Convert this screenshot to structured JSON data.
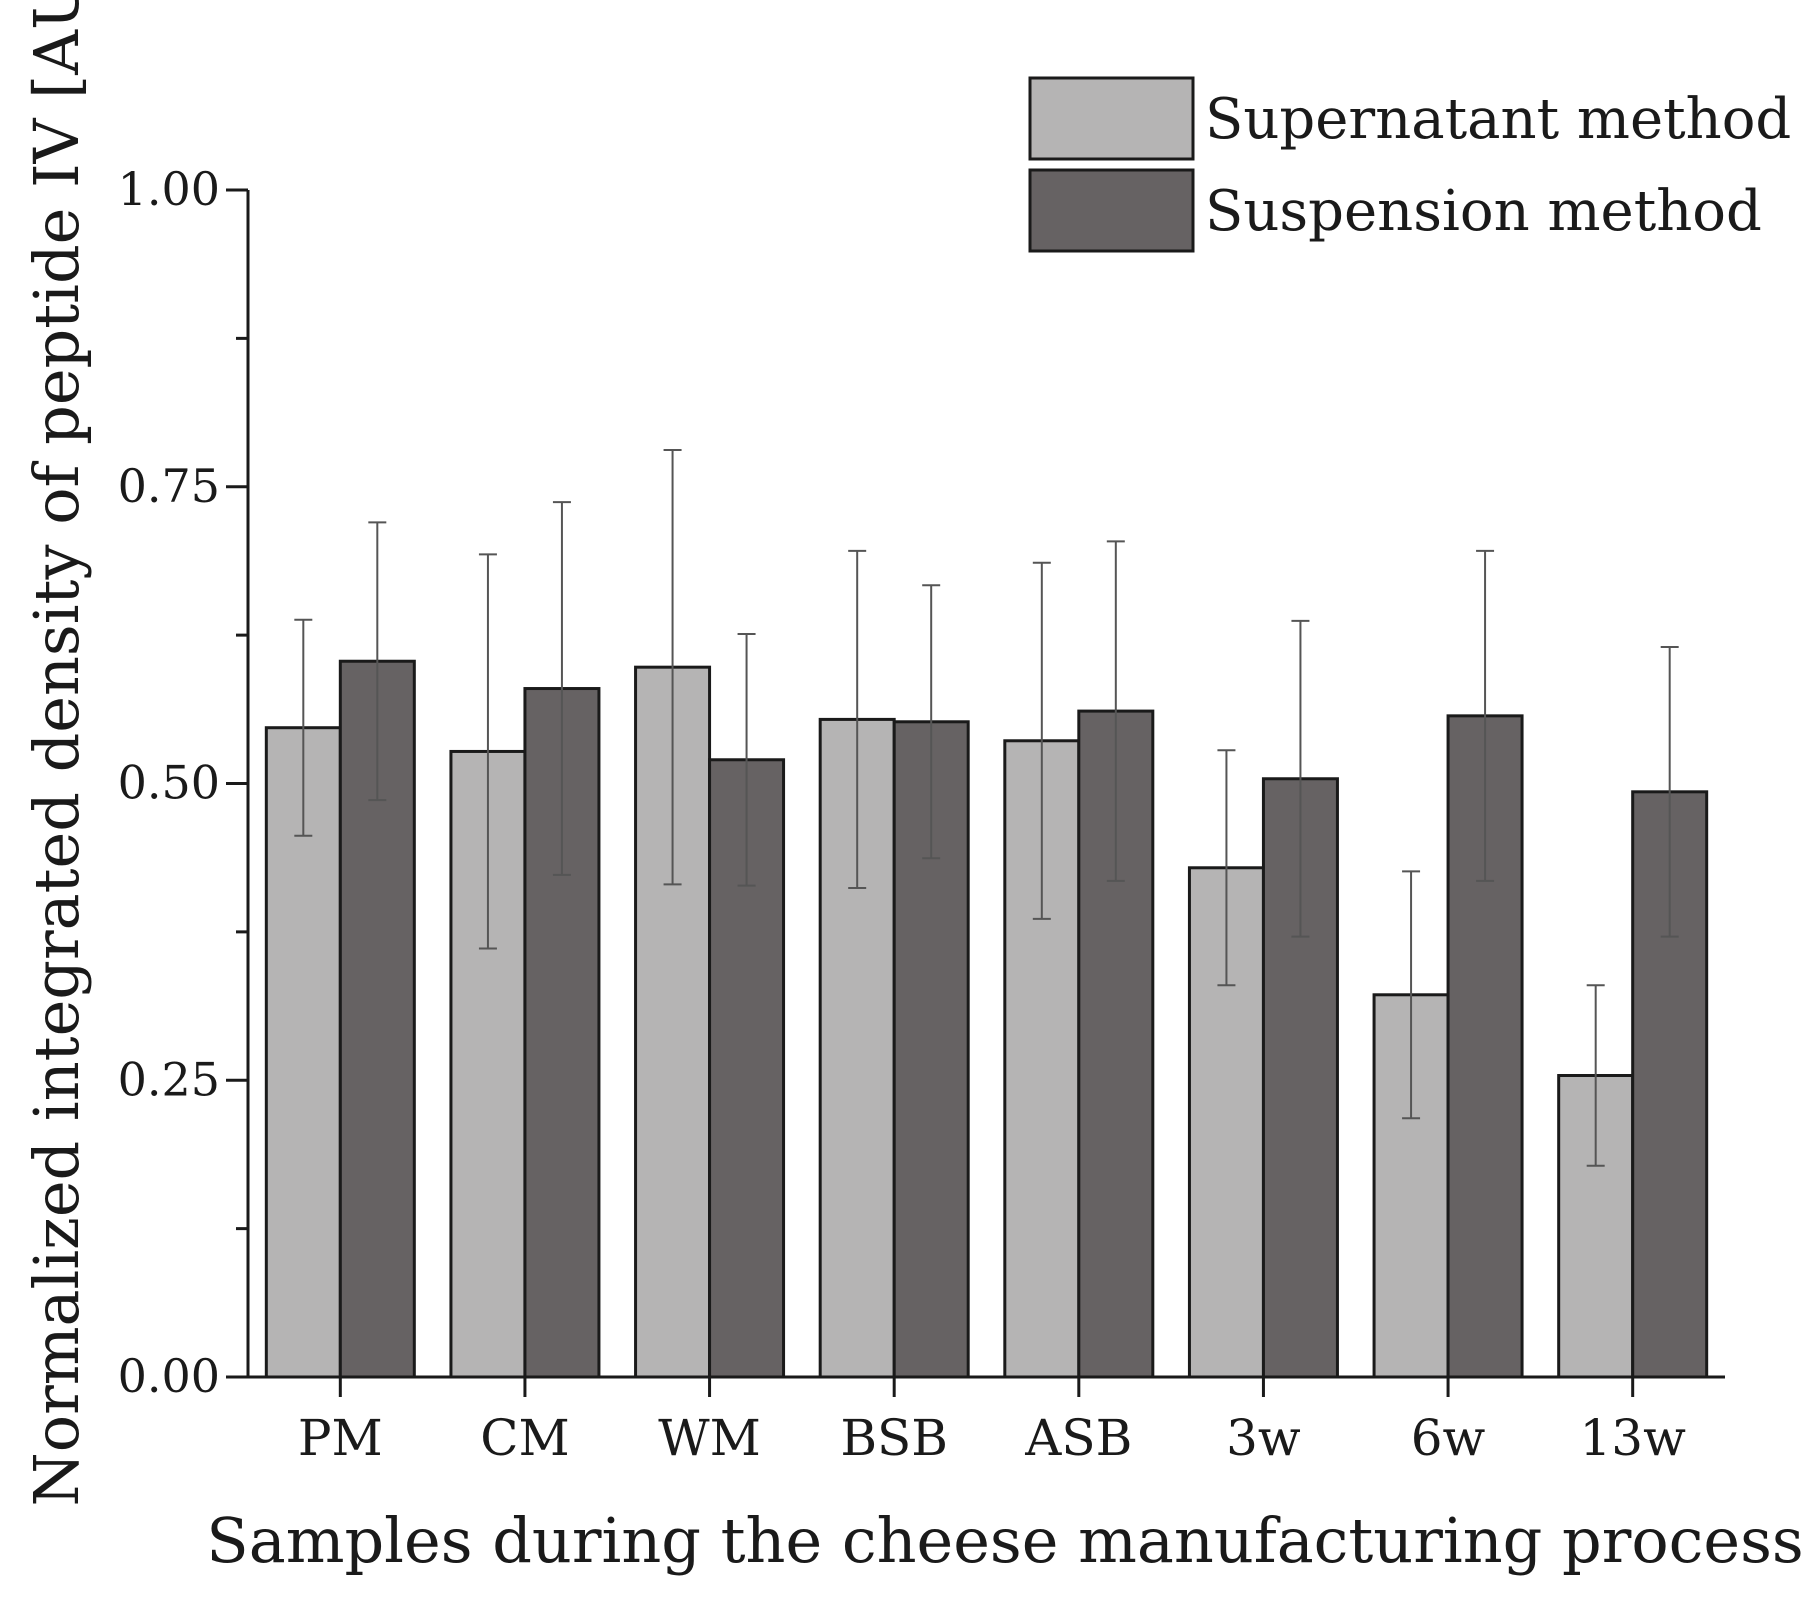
{
  "chart_data": {
    "type": "bar",
    "xlabel": "Samples during the cheese manufacturing process",
    "ylabel": "Normalized integrated density of peptide IV [AU]",
    "ylim": [
      0,
      1.0
    ],
    "yticks": [
      0.0,
      0.25,
      0.5,
      0.75,
      1.0
    ],
    "ytick_labels": [
      "0.00",
      "0.25",
      "0.50",
      "0.75",
      "1.00"
    ],
    "categories": [
      "PM",
      "CM",
      "WM",
      "BSB",
      "ASB",
      "3w",
      "6w",
      "13w"
    ],
    "series": [
      {
        "name": "Supernatant method",
        "color": "#b5b4b4",
        "values": [
          0.547,
          0.527,
          0.598,
          0.554,
          0.536,
          0.429,
          0.322,
          0.254
        ],
        "errors": [
          0.091,
          0.166,
          0.183,
          0.142,
          0.15,
          0.099,
          0.104,
          0.076
        ]
      },
      {
        "name": "Suspension method",
        "color": "#666263",
        "values": [
          0.603,
          0.58,
          0.52,
          0.552,
          0.561,
          0.504,
          0.557,
          0.493
        ],
        "errors": [
          0.117,
          0.157,
          0.106,
          0.115,
          0.143,
          0.133,
          0.139,
          0.122
        ]
      }
    ],
    "legend": {
      "position": "top-right"
    }
  }
}
